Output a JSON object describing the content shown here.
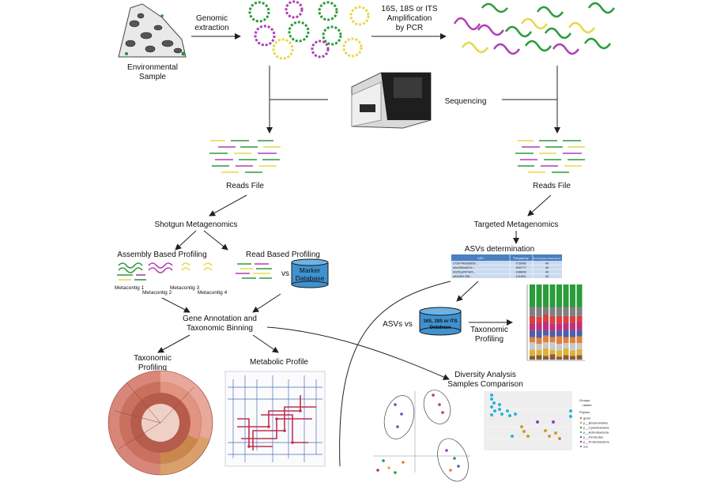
{
  "labels": {
    "environmental": "Environmental",
    "sample": "Sample",
    "genomic": "Genomic",
    "extraction": "extraction",
    "amp1": "16S, 18S or ITS",
    "amp2": "Amplification",
    "amp3": "by PCR",
    "sequencing": "Sequencing",
    "reads_left": "Reads File",
    "reads_right": "Reads File",
    "shotgun": "Shotgun Metagenomics",
    "targeted": "Targeted Metagenomics",
    "assembly": "Assembly Based Profiling",
    "readbased": "Read Based Profiling",
    "vs": "vs",
    "marker1": "Marker",
    "marker2": "Database",
    "metacontig1": "Metacontig 1",
    "metacontig2": "Metacontig 2",
    "metacontig3": "Metacontig 3",
    "metacontig4": "Metacontig 4",
    "gene1": "Gene Annotation and",
    "gene2": "Taxonomic Binning",
    "taxprof1": "Taxonomic",
    "taxprof2": "Profiling",
    "metabolic": "Metabolic Profile",
    "asvs_det": "ASVs determination",
    "asvs_vs": "ASVs vs",
    "db1": "16S, 18S or ITS",
    "db2": "Database",
    "taxprof_r1": "Taxonomic",
    "taxprof_r2": "Profiling",
    "div1": "Diversity Analysis",
    "div2": "Samples Comparison"
  },
  "asv_table": {
    "headers": [
      "ASV",
      "Frequency",
      "# of Samples Observed In"
    ],
    "rows": [
      [
        "c73b7469a6d5b...",
        "716996",
        "40"
      ],
      [
        "4be2f0baf47d...",
        "306777",
        "40"
      ],
      [
        "0d2f1a0574e5...",
        "238808",
        "40"
      ],
      [
        "a52e5f1785...",
        "131951",
        "40"
      ]
    ]
  },
  "legend_box": {
    "title1": "Groups",
    "item1": "- darker",
    "title2": "Phylum",
    "items": [
      "gram",
      "p__Bacteroidetes",
      "p__Cyanobacteria",
      "p__Actinobacteria",
      "p__Firmicutes",
      "p__Proteobacteria",
      "n/a"
    ]
  },
  "colors": {
    "dna_magenta": "#b03fb4",
    "dna_green": "#2a9c3a",
    "dna_yellow": "#e8d84a",
    "db_blue": "#3f92cf",
    "asv_header": "#4a7fc1",
    "asv_row": "#c9daf0",
    "krona_outer": "#e8a89a",
    "metabolic_red": "#c03050",
    "metabolic_blue": "#4a6fb0"
  }
}
